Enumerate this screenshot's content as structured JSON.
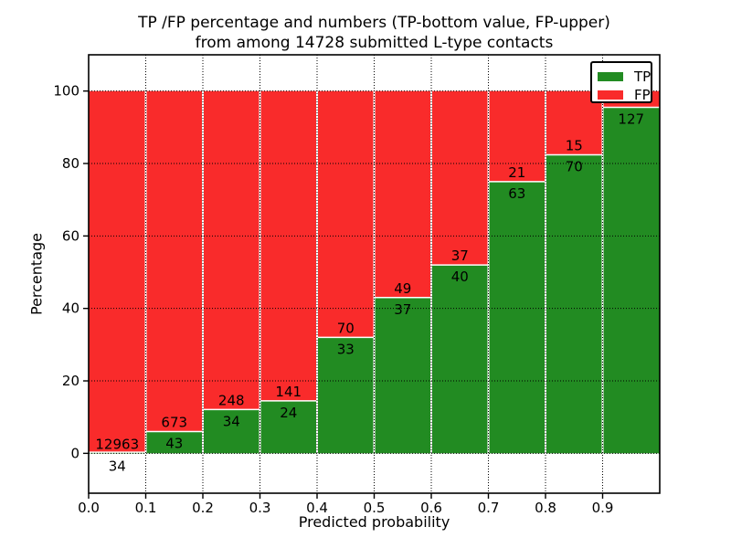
{
  "chart_data": {
    "type": "bar",
    "stacked": true,
    "title_line1": "TP /FP percentage and numbers (TP-bottom value, FP-upper)",
    "title_line2": "from among 14728 submitted L-type contacts",
    "xlabel": "Predicted probability",
    "ylabel": "Percentage",
    "total_submitted": 14728,
    "xlim": [
      0.0,
      1.0
    ],
    "ylim": [
      -11,
      110
    ],
    "bin_width": 0.1,
    "xticks": [
      "0.0",
      "0.1",
      "0.2",
      "0.3",
      "0.4",
      "0.5",
      "0.6",
      "0.7",
      "0.8",
      "0.9"
    ],
    "yticks": [
      0,
      20,
      40,
      60,
      80,
      100
    ],
    "grid_style": "dotted",
    "categories": [
      "0.0",
      "0.1",
      "0.2",
      "0.3",
      "0.4",
      "0.5",
      "0.6",
      "0.7",
      "0.8",
      "0.9"
    ],
    "series": [
      {
        "name": "TP",
        "color": "#228b22",
        "pct_values": [
          0.3,
          6.0,
          12.1,
          14.5,
          32.0,
          43.0,
          52.0,
          75.0,
          82.4,
          95.5
        ],
        "count_labels": [
          "34",
          "43",
          "34",
          "24",
          "33",
          "37",
          "40",
          "63",
          "70",
          "127"
        ]
      },
      {
        "name": "FP",
        "color": "#f92b2b",
        "pct_values": [
          99.7,
          94.0,
          87.9,
          85.5,
          68.0,
          57.0,
          48.0,
          25.0,
          17.6,
          4.5
        ],
        "count_labels": [
          "12963",
          "673",
          "248",
          "141",
          "70",
          "49",
          "37",
          "21",
          "15",
          ""
        ]
      }
    ],
    "legend": {
      "position": "upper right",
      "entries": [
        {
          "label": "TP",
          "color": "#228b22"
        },
        {
          "label": "FP",
          "color": "#f92b2b"
        }
      ]
    }
  }
}
